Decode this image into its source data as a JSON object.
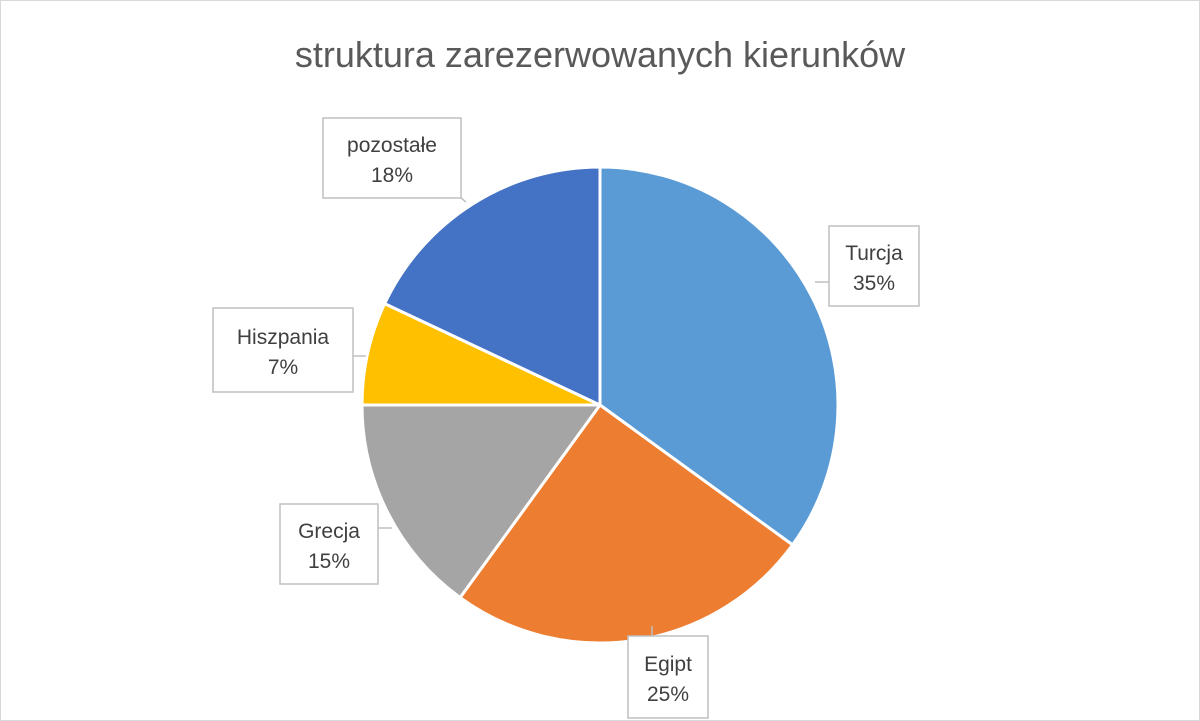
{
  "chart_data": {
    "type": "pie",
    "title": "struktura zarezerwowanych kierunków",
    "categories": [
      "Turcja",
      "Egipt",
      "Grecja",
      "Hiszpania",
      "pozostałe"
    ],
    "values": [
      35,
      25,
      15,
      7,
      18
    ],
    "labels": [
      {
        "name": "Turcja",
        "percent": "35%"
      },
      {
        "name": "Egipt",
        "percent": "25%"
      },
      {
        "name": "Grecja",
        "percent": "15%"
      },
      {
        "name": "Hiszpania",
        "percent": "7%"
      },
      {
        "name": "pozostałe",
        "percent": "18%"
      }
    ],
    "colors": [
      "#5B9BD5",
      "#ED7D31",
      "#A5A5A5",
      "#FFC000",
      "#4472C4"
    ],
    "start_angle_deg": 0,
    "direction": "clockwise"
  }
}
